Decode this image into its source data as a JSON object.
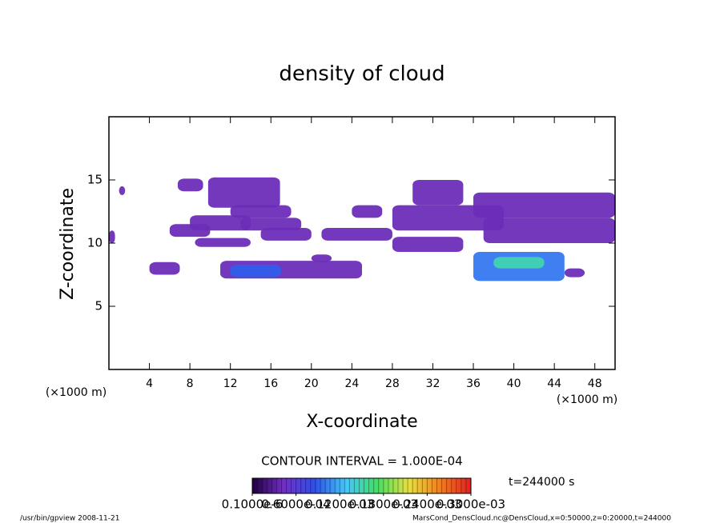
{
  "chart_data": {
    "type": "contour",
    "title": "density of cloud",
    "xlabel": "X-coordinate",
    "ylabel": "Z-coordinate",
    "x_unit": "(×1000 m)",
    "y_unit": "(×1000 m)",
    "xlim": [
      0,
      50
    ],
    "xticks": [
      4,
      8,
      12,
      16,
      20,
      24,
      28,
      32,
      36,
      40,
      44,
      48
    ],
    "ylim": [
      0,
      20
    ],
    "yticks": [
      5,
      10,
      15
    ],
    "contour_interval": "CONTOUR INTERVAL = 1.000E-04",
    "time_label": "t=244000 s",
    "colorbar": {
      "lim": [
        0,
        0.0003
      ],
      "ticks": [
        {
          "value": 0,
          "label": "0.1000e-6"
        },
        {
          "value": 6e-05,
          "label": "0.6000e-04"
        },
        {
          "value": 0.00012,
          "label": "0.1200e-03"
        },
        {
          "value": 0.00018,
          "label": "0.1800e-03"
        },
        {
          "value": 0.00024,
          "label": "0.2400e-03"
        },
        {
          "value": 0.0003,
          "label": "0.3000e-03"
        }
      ],
      "colormap": [
        "#200040",
        "#7030c0",
        "#3050e8",
        "#40c8ff",
        "#40e060",
        "#e8e040",
        "#f08020",
        "#e02020"
      ]
    },
    "patches": [
      {
        "x": [
          0,
          0.6
        ],
        "z": [
          10,
          11
        ],
        "value": 4e-05
      },
      {
        "x": [
          1,
          1.6
        ],
        "z": [
          13.8,
          14.5
        ],
        "value": 4e-05
      },
      {
        "x": [
          6.8,
          9.3
        ],
        "z": [
          14.1,
          15.1
        ],
        "value": 4e-05
      },
      {
        "x": [
          9.8,
          16.9
        ],
        "z": [
          12.8,
          15.2
        ],
        "value": 4e-05
      },
      {
        "x": [
          12,
          18
        ],
        "z": [
          12,
          13
        ],
        "value": 4e-05
      },
      {
        "x": [
          8,
          14
        ],
        "z": [
          11,
          12.2
        ],
        "value": 4e-05
      },
      {
        "x": [
          13,
          19
        ],
        "z": [
          11,
          12
        ],
        "value": 4e-05
      },
      {
        "x": [
          6,
          10
        ],
        "z": [
          10.5,
          11.5
        ],
        "value": 4e-05
      },
      {
        "x": [
          8.5,
          14
        ],
        "z": [
          9.7,
          10.4
        ],
        "value": 4e-05
      },
      {
        "x": [
          15,
          20
        ],
        "z": [
          10.2,
          11.2
        ],
        "value": 4e-05
      },
      {
        "x": [
          21,
          28
        ],
        "z": [
          10.2,
          11.2
        ],
        "value": 4e-05
      },
      {
        "x": [
          24,
          27
        ],
        "z": [
          12,
          13
        ],
        "value": 4e-05
      },
      {
        "x": [
          4,
          7
        ],
        "z": [
          7.5,
          8.5
        ],
        "value": 4e-05
      },
      {
        "x": [
          11,
          25
        ],
        "z": [
          7.2,
          8.6
        ],
        "value": 4e-05
      },
      {
        "x": [
          12,
          17
        ],
        "z": [
          7.3,
          8.3
        ],
        "value": 9e-05
      },
      {
        "x": [
          20,
          22
        ],
        "z": [
          8.5,
          9.1
        ],
        "value": 4e-05
      },
      {
        "x": [
          28,
          35
        ],
        "z": [
          9.3,
          10.5
        ],
        "value": 4e-05
      },
      {
        "x": [
          28,
          39
        ],
        "z": [
          11,
          13
        ],
        "value": 4e-05
      },
      {
        "x": [
          30,
          35
        ],
        "z": [
          13,
          15
        ],
        "value": 4e-05
      },
      {
        "x": [
          36,
          50
        ],
        "z": [
          12,
          14
        ],
        "value": 4e-05
      },
      {
        "x": [
          37,
          50
        ],
        "z": [
          10,
          12
        ],
        "value": 4e-05
      },
      {
        "x": [
          36,
          45
        ],
        "z": [
          7,
          9.3
        ],
        "value": 0.0001
      },
      {
        "x": [
          38,
          43
        ],
        "z": [
          8,
          8.9
        ],
        "value": 0.00015
      },
      {
        "x": [
          45,
          47
        ],
        "z": [
          7.3,
          8
        ],
        "value": 4e-05
      }
    ],
    "footer_left": "/usr/bin/gpview  2008-11-21",
    "footer_right": "MarsCond_DensCloud.nc@DensCloud,x=0:50000,z=0:20000,t=244000"
  }
}
